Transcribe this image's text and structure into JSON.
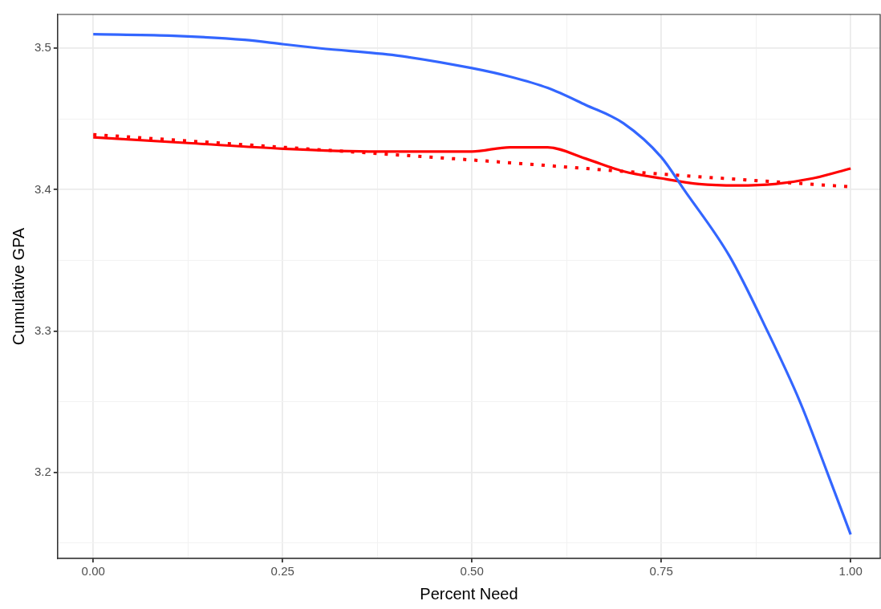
{
  "chart_data": {
    "type": "line",
    "xlabel": "Percent Need",
    "ylabel": "Cumulative GPA",
    "xlim": [
      -0.047,
      1.039
    ],
    "ylim": [
      3.139,
      3.524
    ],
    "xticks": [
      {
        "value": 0,
        "label": "0.00"
      },
      {
        "value": 0.125,
        "label": null
      },
      {
        "value": 0.25,
        "label": "0.25"
      },
      {
        "value": 0.375,
        "label": null
      },
      {
        "value": 0.5,
        "label": "0.50"
      },
      {
        "value": 0.625,
        "label": null
      },
      {
        "value": 0.75,
        "label": "0.75"
      },
      {
        "value": 0.875,
        "label": null
      },
      {
        "value": 1,
        "label": "1.00"
      }
    ],
    "yticks": [
      {
        "value": 3.15,
        "label": null
      },
      3.2,
      {
        "value": 3.25,
        "label": null
      },
      3.3,
      {
        "value": 3.35,
        "label": null
      },
      3.4,
      {
        "value": 3.45,
        "label": null
      },
      3.5
    ],
    "grid": true,
    "series": [
      {
        "color": "#3366ff",
        "line_style": "solid",
        "x": [
          0,
          0.1,
          0.2,
          0.25,
          0.3,
          0.4,
          0.5,
          0.55,
          0.6,
          0.65,
          0.7,
          0.75,
          0.78,
          0.84,
          0.89,
          0.933,
          0.969,
          1.0
        ],
        "values": [
          3.51,
          3.509,
          3.506,
          3.503,
          3.5,
          3.495,
          3.486,
          3.48,
          3.472,
          3.46,
          3.447,
          3.423,
          3.4,
          3.353,
          3.3,
          3.25,
          3.2,
          3.156
        ]
      },
      {
        "color": "#ff0000",
        "line_style": "solid",
        "x": [
          0,
          0.125,
          0.25,
          0.375,
          0.5,
          0.55,
          0.6,
          0.65,
          0.7,
          0.75,
          0.8,
          0.85,
          0.9,
          0.95,
          1.0
        ],
        "values": [
          3.437,
          3.433,
          3.429,
          3.427,
          3.427,
          3.43,
          3.43,
          3.422,
          3.413,
          3.408,
          3.404,
          3.403,
          3.404,
          3.408,
          3.415
        ]
      },
      {
        "color": "#ff0000",
        "line_style": "dotted",
        "x": [
          0,
          0.25,
          0.5,
          0.75,
          1.0
        ],
        "values": [
          3.439,
          3.43,
          3.421,
          3.411,
          3.402
        ]
      }
    ]
  }
}
